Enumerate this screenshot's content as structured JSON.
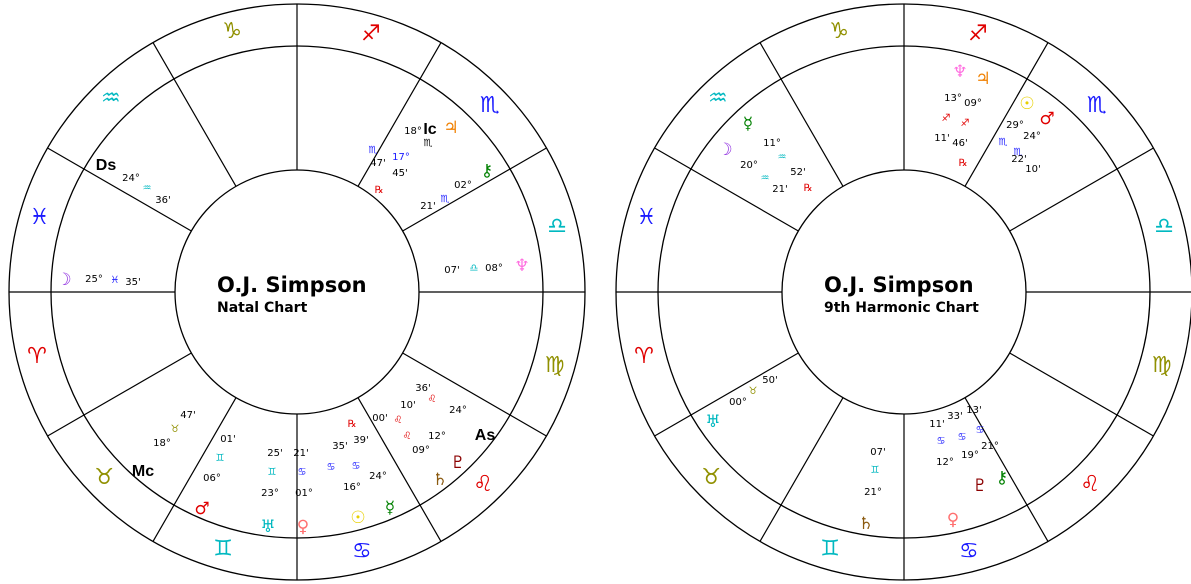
{
  "wheels": [
    {
      "title": "O.J. Simpson",
      "subtitle": "Natal Chart",
      "signs": [
        "♑",
        "♐",
        "♏",
        "♎",
        "♍",
        "♌",
        "♋",
        "♊",
        "♉",
        "♈",
        "♓",
        "♒"
      ],
      "labels": [
        "Ic",
        "18°",
        "♃",
        "♏",
        "♏",
        "17°",
        "47'",
        "45'",
        "⚷",
        "02°",
        "℞",
        "♏",
        "21'",
        "Ds",
        "24°",
        "♒",
        "36'",
        "☽",
        "25°",
        "♓",
        "35'",
        "07'",
        "♎",
        "08°",
        "♆",
        "36'",
        "10'",
        "♌",
        "24°",
        "00'",
        "♌",
        "♌",
        "12°",
        "09°",
        "As",
        "♇",
        "♄",
        "℞",
        "35'",
        "39'",
        "♋",
        "♋",
        "24°",
        "16°",
        "☉",
        "☿",
        "21'",
        "25'",
        "♋",
        "♊",
        "23°",
        "01°",
        "♅",
        "♀",
        "47'",
        "♉",
        "18°",
        "Mc",
        "01'",
        "♊",
        "06°",
        "♂"
      ]
    },
    {
      "title": "O.J. Simpson",
      "subtitle": "9th Harmonic Chart",
      "signs": [
        "♑",
        "♐",
        "♏",
        "♎",
        "♍",
        "♌",
        "♋",
        "♊",
        "♉",
        "♈",
        "♓",
        "♒"
      ],
      "labels": [
        "♆",
        "♃",
        "13°",
        "09°",
        "♐",
        "♐",
        "11'",
        "46'",
        "℞",
        "☉",
        "♂",
        "29°",
        "24°",
        "♏",
        "♏",
        "22'",
        "10'",
        "☿",
        "11°",
        "☽",
        "20°",
        "♒",
        "52'",
        "♒",
        "21'",
        "℞",
        "50'",
        "♉",
        "00°",
        "♅",
        "07'",
        "♊",
        "21°",
        "♄",
        "11'",
        "33'",
        "13'",
        "♋",
        "♋",
        "♋",
        "21°",
        "12°",
        "19°",
        "♇",
        "⚷",
        "♀"
      ]
    }
  ]
}
